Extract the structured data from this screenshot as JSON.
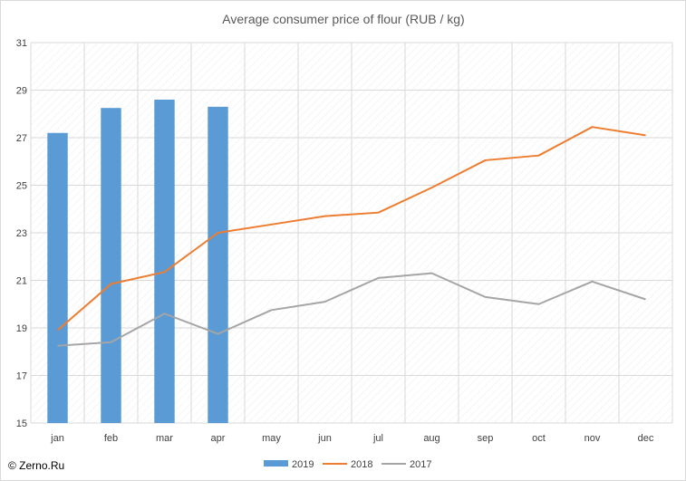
{
  "chart_data": {
    "type": "bar+line",
    "title": "Average consumer price of flour (RUB / kg)",
    "categories": [
      "jan",
      "feb",
      "mar",
      "apr",
      "may",
      "jun",
      "jul",
      "aug",
      "sep",
      "oct",
      "nov",
      "dec"
    ],
    "ylim": [
      15,
      31
    ],
    "yticks": [
      15,
      17,
      19,
      21,
      23,
      25,
      27,
      29,
      31
    ],
    "grid": true,
    "legend_position": "bottom",
    "series": [
      {
        "name": "2019",
        "type": "bar",
        "color": "#5b9bd5",
        "values": [
          27.2,
          28.25,
          28.6,
          28.3,
          null,
          null,
          null,
          null,
          null,
          null,
          null,
          null
        ]
      },
      {
        "name": "2018",
        "type": "line",
        "color": "#ed7d31",
        "values": [
          18.9,
          20.85,
          21.35,
          23.0,
          23.35,
          23.7,
          23.85,
          24.9,
          26.05,
          26.25,
          27.45,
          27.1
        ]
      },
      {
        "name": "2017",
        "type": "line",
        "color": "#a5a5a5",
        "values": [
          18.25,
          18.4,
          19.6,
          18.75,
          19.75,
          20.1,
          21.1,
          21.3,
          20.3,
          20.0,
          20.95,
          20.2
        ]
      }
    ]
  },
  "credit": "© Zerno.Ru"
}
